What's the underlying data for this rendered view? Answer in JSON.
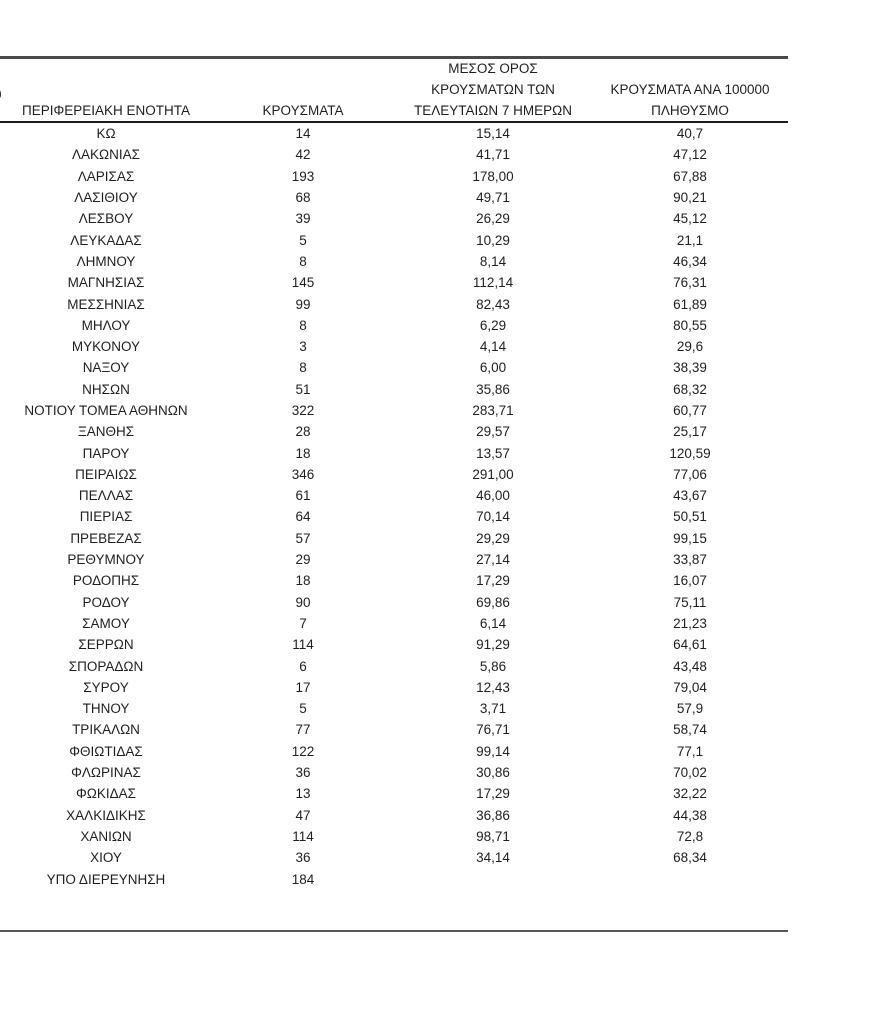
{
  "page": {
    "clipped_left_text": "0"
  },
  "table": {
    "text_color": "#1f1f1f",
    "rule_color": "#4a4a4d",
    "header": {
      "region": "ΠΕΡΙΦΕΡΕΙΑΚΗ ΕΝΟΤΗΤΑ",
      "cases": "ΚΡΟΥΣΜΑΤΑ",
      "avg7_lines": [
        "ΜΕΣΟΣ ΟΡΟΣ",
        "ΚΡΟΥΣΜΑΤΩΝ ΤΩΝ",
        "ΤΕΛΕΥΤΑΙΩΝ 7 ΗΜΕΡΩΝ"
      ],
      "per100k_lines": [
        "ΚΡΟΥΣΜΑΤΑ ΑΝΑ 100000",
        "ΠΛΗΘΥΣΜΟ"
      ]
    },
    "rows": [
      {
        "region": "ΚΩ",
        "cases": "14",
        "avg7": "15,14",
        "per100k": "40,7"
      },
      {
        "region": "ΛΑΚΩΝΙΑΣ",
        "cases": "42",
        "avg7": "41,71",
        "per100k": "47,12"
      },
      {
        "region": "ΛΑΡΙΣΑΣ",
        "cases": "193",
        "avg7": "178,00",
        "per100k": "67,88"
      },
      {
        "region": "ΛΑΣΙΘΙΟΥ",
        "cases": "68",
        "avg7": "49,71",
        "per100k": "90,21"
      },
      {
        "region": "ΛΕΣΒΟΥ",
        "cases": "39",
        "avg7": "26,29",
        "per100k": "45,12"
      },
      {
        "region": "ΛΕΥΚΑΔΑΣ",
        "cases": "5",
        "avg7": "10,29",
        "per100k": "21,1"
      },
      {
        "region": "ΛΗΜΝΟΥ",
        "cases": "8",
        "avg7": "8,14",
        "per100k": "46,34"
      },
      {
        "region": "ΜΑΓΝΗΣΙΑΣ",
        "cases": "145",
        "avg7": "112,14",
        "per100k": "76,31"
      },
      {
        "region": "ΜΕΣΣΗΝΙΑΣ",
        "cases": "99",
        "avg7": "82,43",
        "per100k": "61,89"
      },
      {
        "region": "ΜΗΛΟΥ",
        "cases": "8",
        "avg7": "6,29",
        "per100k": "80,55"
      },
      {
        "region": "ΜΥΚΟΝΟΥ",
        "cases": "3",
        "avg7": "4,14",
        "per100k": "29,6"
      },
      {
        "region": "ΝΑΞΟΥ",
        "cases": "8",
        "avg7": "6,00",
        "per100k": "38,39"
      },
      {
        "region": "ΝΗΣΩΝ",
        "cases": "51",
        "avg7": "35,86",
        "per100k": "68,32"
      },
      {
        "region": "ΝΟΤΙΟΥ ΤΟΜΕΑ ΑΘΗΝΩΝ",
        "cases": "322",
        "avg7": "283,71",
        "per100k": "60,77"
      },
      {
        "region": "ΞΑΝΘΗΣ",
        "cases": "28",
        "avg7": "29,57",
        "per100k": "25,17"
      },
      {
        "region": "ΠΑΡΟΥ",
        "cases": "18",
        "avg7": "13,57",
        "per100k": "120,59"
      },
      {
        "region": "ΠΕΙΡΑΙΩΣ",
        "cases": "346",
        "avg7": "291,00",
        "per100k": "77,06"
      },
      {
        "region": "ΠΕΛΛΑΣ",
        "cases": "61",
        "avg7": "46,00",
        "per100k": "43,67"
      },
      {
        "region": "ΠΙΕΡΙΑΣ",
        "cases": "64",
        "avg7": "70,14",
        "per100k": "50,51"
      },
      {
        "region": "ΠΡΕΒΕΖΑΣ",
        "cases": "57",
        "avg7": "29,29",
        "per100k": "99,15"
      },
      {
        "region": "ΡΕΘΥΜΝΟΥ",
        "cases": "29",
        "avg7": "27,14",
        "per100k": "33,87"
      },
      {
        "region": "ΡΟΔΟΠΗΣ",
        "cases": "18",
        "avg7": "17,29",
        "per100k": "16,07"
      },
      {
        "region": "ΡΟΔΟΥ",
        "cases": "90",
        "avg7": "69,86",
        "per100k": "75,11"
      },
      {
        "region": "ΣΑΜΟΥ",
        "cases": "7",
        "avg7": "6,14",
        "per100k": "21,23"
      },
      {
        "region": "ΣΕΡΡΩΝ",
        "cases": "114",
        "avg7": "91,29",
        "per100k": "64,61"
      },
      {
        "region": "ΣΠΟΡΑΔΩΝ",
        "cases": "6",
        "avg7": "5,86",
        "per100k": "43,48"
      },
      {
        "region": "ΣΥΡΟΥ",
        "cases": "17",
        "avg7": "12,43",
        "per100k": "79,04"
      },
      {
        "region": "ΤΗΝΟΥ",
        "cases": "5",
        "avg7": "3,71",
        "per100k": "57,9"
      },
      {
        "region": "ΤΡΙΚΑΛΩΝ",
        "cases": "77",
        "avg7": "76,71",
        "per100k": "58,74"
      },
      {
        "region": "ΦΘΙΩΤΙΔΑΣ",
        "cases": "122",
        "avg7": "99,14",
        "per100k": "77,1"
      },
      {
        "region": "ΦΛΩΡΙΝΑΣ",
        "cases": "36",
        "avg7": "30,86",
        "per100k": "70,02"
      },
      {
        "region": "ΦΩΚΙΔΑΣ",
        "cases": "13",
        "avg7": "17,29",
        "per100k": "32,22"
      },
      {
        "region": "ΧΑΛΚΙΔΙΚΗΣ",
        "cases": "47",
        "avg7": "36,86",
        "per100k": "44,38"
      },
      {
        "region": "ΧΑΝΙΩΝ",
        "cases": "114",
        "avg7": "98,71",
        "per100k": "72,8"
      },
      {
        "region": "ΧΙΟΥ",
        "cases": "36",
        "avg7": "34,14",
        "per100k": "68,34"
      },
      {
        "region": "ΥΠΟ ΔΙΕΡΕΥΝΗΣΗ",
        "cases": "184",
        "avg7": "",
        "per100k": ""
      }
    ]
  }
}
